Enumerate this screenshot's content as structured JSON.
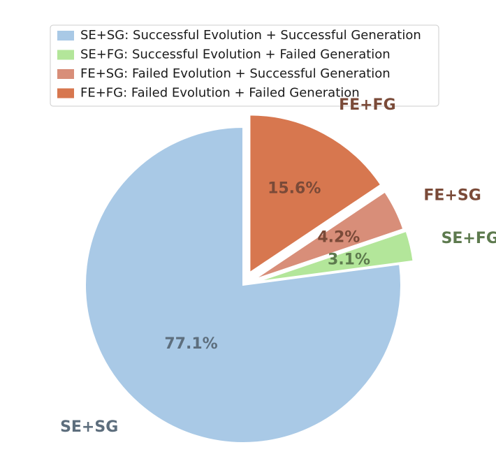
{
  "chart_data": {
    "type": "pie",
    "title": "",
    "categories": [
      "SE+SG",
      "SE+FG",
      "FE+SG",
      "FE+FG"
    ],
    "values": [
      77.1,
      3.1,
      4.2,
      15.6
    ],
    "value_labels": [
      "77.1%",
      "3.1%",
      "4.2%",
      "15.6%"
    ],
    "legend": [
      "SE+SG: Successful Evolution + Successful Generation",
      "SE+FG: Successful Evolution + Failed Generation",
      "FE+SG: Failed Evolution + Successful Generation",
      "FE+FG: Failed Evolution + Failed Generation"
    ],
    "legend_position": "top",
    "colors": [
      "#a9c9e6",
      "#b3e69a",
      "#d88e79",
      "#d7774f"
    ],
    "label_colors": [
      "#5d6e7d",
      "#5d7a4e",
      "#7a4a38",
      "#7a4a38"
    ],
    "start_angle_deg": 90,
    "direction": "counterclockwise",
    "exploded": [
      "SE+FG",
      "FE+SG",
      "FE+FG"
    ]
  }
}
